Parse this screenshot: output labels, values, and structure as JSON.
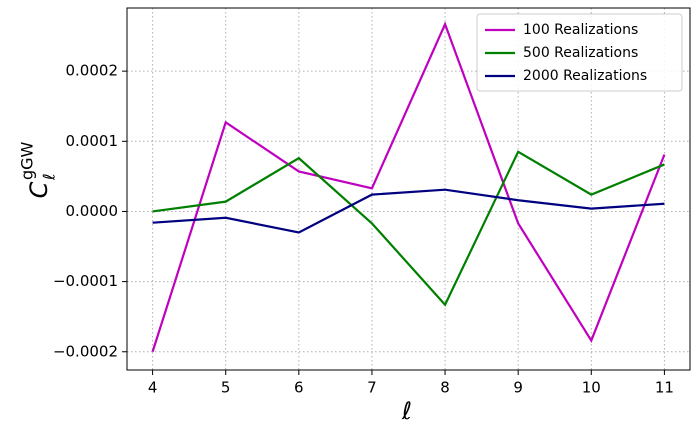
{
  "chart_data": {
    "type": "line",
    "xlabel": "ℓ",
    "ylabel": {
      "main": "C",
      "subscript": "ℓ",
      "superscript": "gGW"
    },
    "x": [
      4,
      5,
      6,
      7,
      8,
      9,
      10,
      11
    ],
    "series": [
      {
        "name": "100 Realizations",
        "color": "#bf00bf",
        "values": [
          -0.0002,
          0.000127,
          5.7e-05,
          3.3e-05,
          0.000267,
          -1.7e-05,
          -0.000184,
          8.1e-05
        ]
      },
      {
        "name": "500 Realizations",
        "color": "#008000",
        "values": [
          0,
          1.4e-05,
          7.6e-05,
          -1.7e-05,
          -0.000133,
          8.5e-05,
          2.4e-05,
          6.7e-05
        ]
      },
      {
        "name": "2000 Realizations",
        "color": "#000080",
        "values": [
          -1.6e-05,
          -9e-06,
          -3e-05,
          2.4e-05,
          3.1e-05,
          1.6e-05,
          4e-06,
          1.1e-05
        ]
      }
    ],
    "xlim": [
      3.65,
      11.35
    ],
    "ylim": [
      -0.000226,
      0.00029
    ],
    "xticks": [
      4,
      5,
      6,
      7,
      8,
      9,
      10,
      11
    ],
    "yticks": [
      {
        "value": -0.0002,
        "label": "−0.0002"
      },
      {
        "value": -0.0001,
        "label": "−0.0001"
      },
      {
        "value": 0,
        "label": "0.0000"
      },
      0.0001,
      0.0002
    ],
    "grid": true,
    "legend": "upper right"
  }
}
